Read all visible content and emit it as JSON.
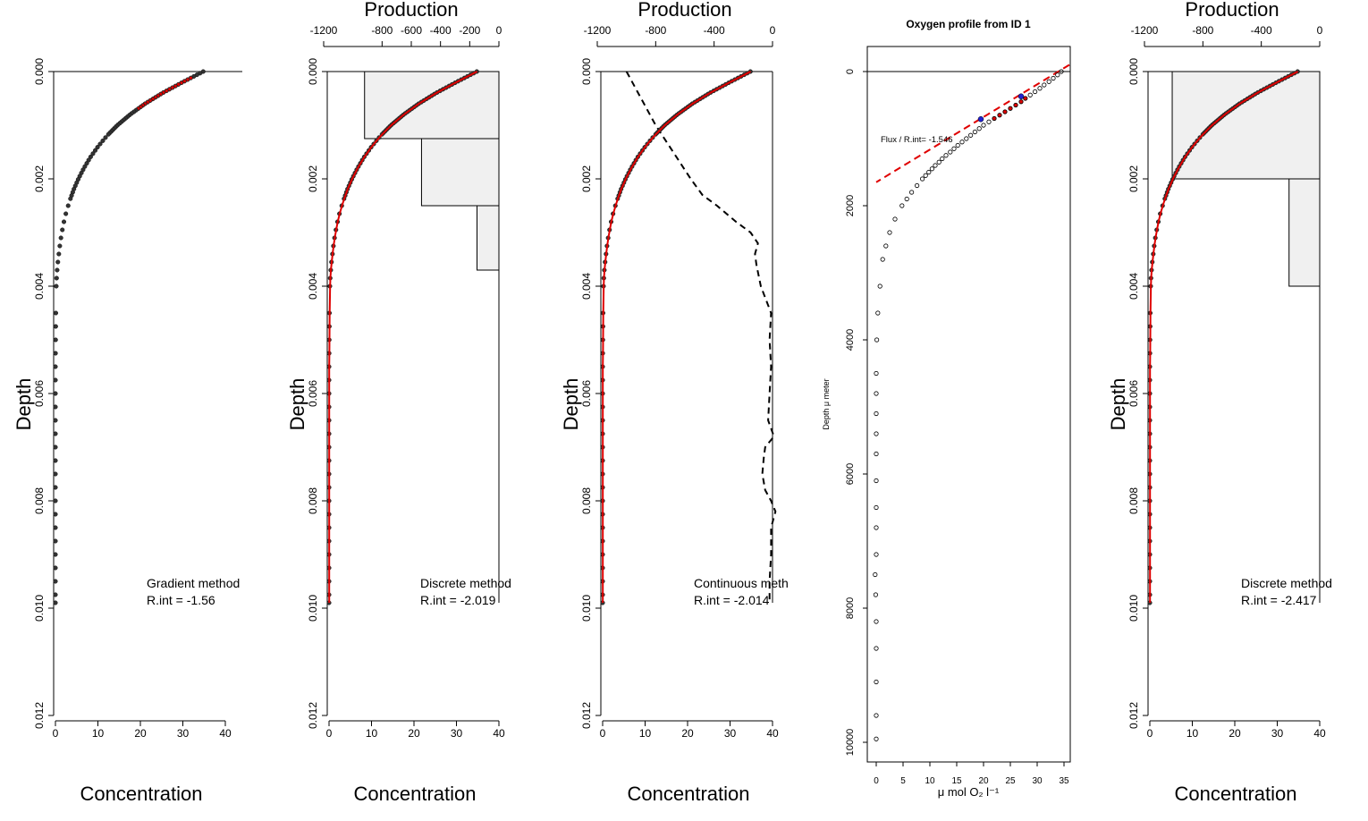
{
  "figure": {
    "title": ""
  },
  "chart_data": [
    {
      "type": "scatter",
      "panel": "gradient",
      "ylabel": "Depth",
      "xlabel": "Concentration",
      "ylim": [
        0.012,
        0
      ],
      "xlim": [
        0,
        40
      ],
      "yticks": [
        "0.000",
        "0.002",
        "0.004",
        "0.006",
        "0.008",
        "0.010",
        "0.012"
      ],
      "xticks": [
        "0",
        "10",
        "20",
        "30",
        "40"
      ],
      "has_top_axis": false,
      "annotation": [
        "Gradient method",
        "R.int = -1.56"
      ],
      "profile": {
        "depth": [
          0,
          0.0002,
          0.0004,
          0.0006,
          0.0008,
          0.001,
          0.0012,
          0.0014,
          0.0016,
          0.0018,
          0.002,
          0.0022,
          0.0024,
          0.0026,
          0.0028,
          0.003,
          0.0032,
          0.0034,
          0.0036,
          0.0038,
          0.004,
          0.0045,
          0.005,
          0.0055,
          0.006,
          0.0065,
          0.007,
          0.0075,
          0.008,
          0.0085,
          0.009,
          0.0095,
          0.0099
        ],
        "concentration": [
          34.8,
          29.9,
          25.2,
          21.1,
          17.6,
          14.6,
          12.1,
          10.0,
          8.2,
          6.7,
          5.4,
          4.3,
          3.4,
          2.6,
          2.0,
          1.5,
          1.1,
          0.8,
          0.5,
          0.3,
          0.2,
          0.1,
          0.05,
          0.0,
          0.0,
          0.0,
          0.0,
          0.0,
          0.0,
          0.0,
          0.0,
          0.0,
          0.0
        ]
      },
      "highlight_range": [
        0.0001,
        0.0007
      ]
    },
    {
      "type": "scatter",
      "panel": "discrete",
      "ylabel": "Depth",
      "xlabel": "Concentration",
      "top_axis_label": "Production",
      "ylim": [
        0.012,
        0
      ],
      "xlim": [
        0,
        40
      ],
      "top_xlim": [
        -1200,
        0
      ],
      "yticks": [
        "0.000",
        "0.002",
        "0.004",
        "0.006",
        "0.008",
        "0.010",
        "0.012"
      ],
      "xticks": [
        "0",
        "10",
        "20",
        "30",
        "40"
      ],
      "top_xticks": [
        "-1200",
        "-800",
        "-600",
        "-400",
        "-200",
        "0"
      ],
      "annotation": [
        "Discrete method",
        "R.int = -2.019"
      ],
      "production_bars": [
        {
          "top": 0,
          "bottom": 0.00125,
          "value": -920
        },
        {
          "top": 0.00125,
          "bottom": 0.0025,
          "value": -530
        },
        {
          "top": 0.0025,
          "bottom": 0.0037,
          "value": -150
        }
      ]
    },
    {
      "type": "line",
      "panel": "continuous",
      "ylabel": "Depth",
      "xlabel": "Concentration",
      "top_axis_label": "Production",
      "ylim": [
        0.012,
        0
      ],
      "xlim": [
        0,
        40
      ],
      "top_xlim": [
        -1200,
        0
      ],
      "yticks": [
        "0.000",
        "0.002",
        "0.004",
        "0.006",
        "0.008",
        "0.010",
        "0.012"
      ],
      "xticks": [
        "0",
        "10",
        "20",
        "30",
        "40"
      ],
      "top_xticks": [
        "-1200",
        "-800",
        "-400",
        "0"
      ],
      "annotation": [
        "Continuous meth",
        "R.int = -2.014"
      ],
      "production_curve": {
        "depth": [
          0,
          0.0005,
          0.001,
          0.0015,
          0.002,
          0.0023,
          0.0025,
          0.0028,
          0.003,
          0.0032,
          0.0034,
          0.0036,
          0.004,
          0.0045,
          0.005,
          0.0055,
          0.006,
          0.0065,
          0.0068,
          0.007,
          0.0072,
          0.0075,
          0.0078,
          0.008,
          0.0082,
          0.0085,
          0.009,
          0.0095,
          0.0099
        ],
        "value": [
          -1000,
          -900,
          -800,
          -680,
          -560,
          -480,
          -380,
          -250,
          -150,
          -100,
          -120,
          -110,
          -80,
          -10,
          -20,
          -10,
          -20,
          -30,
          10,
          -50,
          -60,
          -70,
          -50,
          -10,
          20,
          -10,
          -10,
          -20,
          -20
        ]
      }
    },
    {
      "type": "scatter",
      "panel": "oxygen",
      "title": "Oxygen profile from ID 1",
      "ylabel": "Depth μ meter",
      "xlabel": "μ mol O₂ l⁻¹",
      "ylim": [
        10000,
        0
      ],
      "xlim": [
        0,
        35
      ],
      "yticks": [
        "0",
        "2000",
        "4000",
        "6000",
        "8000",
        "10000"
      ],
      "xticks": [
        "0",
        "5",
        "10",
        "15",
        "20",
        "25",
        "30",
        "35"
      ],
      "annotation": [
        "Flux / R.int= -1.546"
      ],
      "profile": {
        "depth": [
          0,
          50,
          100,
          150,
          200,
          250,
          300,
          350,
          400,
          450,
          500,
          550,
          600,
          650,
          700,
          750,
          800,
          850,
          900,
          950,
          1000,
          1050,
          1100,
          1150,
          1200,
          1250,
          1300,
          1350,
          1400,
          1450,
          1500,
          1550,
          1600,
          1700,
          1800,
          1900,
          2000,
          2200,
          2400,
          2600,
          2800,
          3200,
          3600,
          4000,
          4500,
          4800,
          5100,
          5400,
          5700,
          6100,
          6500,
          6800,
          7200,
          7500,
          7800,
          8200,
          8600,
          9100,
          9600,
          9950
        ],
        "concentration": [
          34.5,
          33.8,
          33.0,
          32.2,
          31.3,
          30.5,
          29.6,
          28.7,
          27.8,
          27.0,
          26.0,
          25.0,
          24.0,
          23.0,
          22.0,
          21.0,
          20.0,
          19.2,
          18.4,
          17.6,
          16.8,
          16.0,
          15.2,
          14.5,
          13.8,
          13.0,
          12.3,
          11.7,
          11.0,
          10.4,
          9.8,
          9.2,
          8.6,
          7.6,
          6.6,
          5.7,
          4.8,
          3.5,
          2.5,
          1.8,
          1.2,
          0.7,
          0.3,
          0.1,
          0.0,
          0.0,
          0.0,
          0.0,
          0.0,
          0.0,
          0.0,
          0.0,
          0.0,
          -0.2,
          -0.1,
          0.0,
          0.0,
          0.0,
          0.0,
          0.0
        ]
      },
      "fit_line": {
        "x": [
          36,
          0
        ],
        "y": [
          -100,
          1650
        ]
      },
      "markers": [
        {
          "x": 27,
          "y": 370
        },
        {
          "x": 19.5,
          "y": 710
        }
      ]
    },
    {
      "type": "scatter",
      "panel": "discrete2",
      "ylabel": "Depth",
      "xlabel": "Concentration",
      "top_axis_label": "Production",
      "ylim": [
        0.012,
        0
      ],
      "xlim": [
        0,
        40
      ],
      "top_xlim": [
        -1200,
        0
      ],
      "yticks": [
        "0.000",
        "0.002",
        "0.004",
        "0.006",
        "0.008",
        "0.010",
        "0.012"
      ],
      "xticks": [
        "0",
        "10",
        "20",
        "30",
        "40"
      ],
      "top_xticks": [
        "-1200",
        "-800",
        "-400",
        "0"
      ],
      "annotation": [
        "Discrete method",
        "R.int = -2.417"
      ],
      "production_bars": [
        {
          "top": 0,
          "bottom": 0.002,
          "value": -1010
        },
        {
          "top": 0.002,
          "bottom": 0.004,
          "value": -210
        }
      ]
    }
  ]
}
